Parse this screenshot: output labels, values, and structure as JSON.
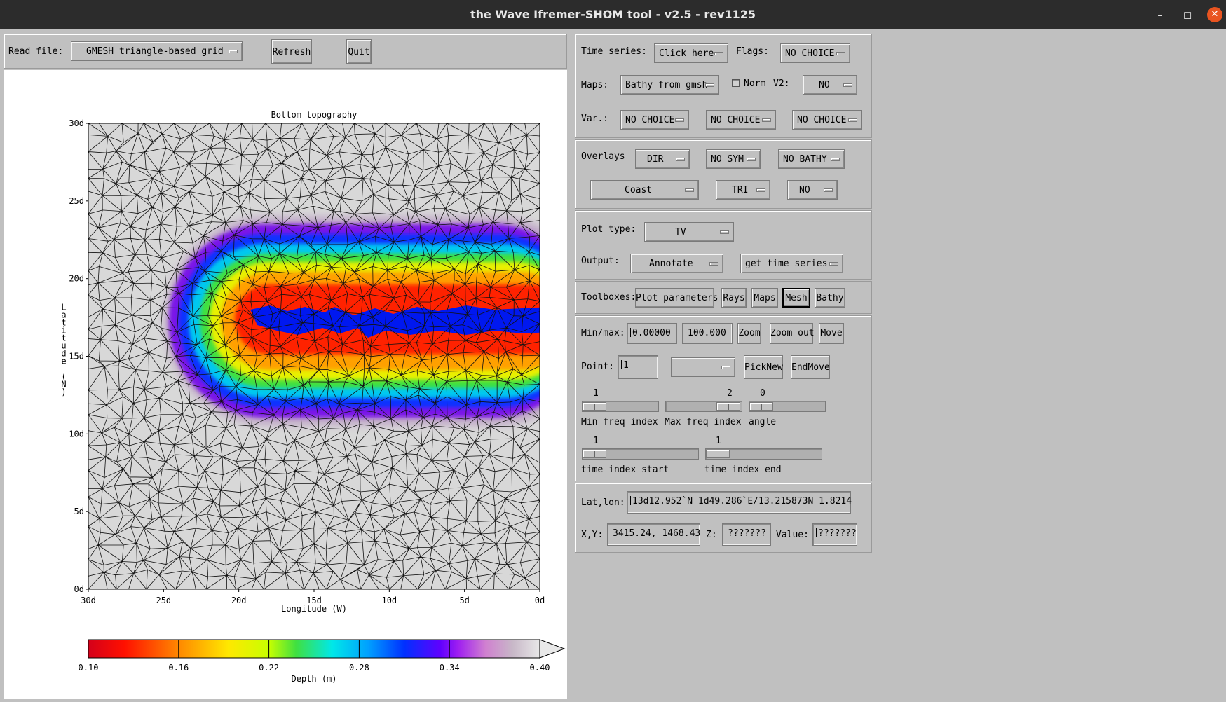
{
  "window": {
    "title": "the Wave Ifremer-SHOM tool - v2.5 - rev1125",
    "minimize": "–",
    "maximize": "◻",
    "close": "✕"
  },
  "left": {
    "read_file_label": "Read file:",
    "read_file_value": "GMESH triangle-based grid",
    "refresh": "Refresh",
    "quit": "Quit"
  },
  "chart_data": {
    "type": "heatmap",
    "title": "Bottom topography",
    "xlabel": "Longitude (W)",
    "ylabel": "Latitude (N)",
    "x_ticks": [
      "30d",
      "25d",
      "20d",
      "15d",
      "10d",
      "5d",
      "0d"
    ],
    "y_ticks": [
      "30d",
      "25d",
      "20d",
      "15d",
      "10d",
      "5d",
      "0d"
    ],
    "xlim": [
      30,
      0
    ],
    "ylim": [
      0,
      30
    ],
    "colorbar": {
      "label": "Depth (m)",
      "ticks": [
        "0.10",
        "0.16",
        "0.22",
        "0.28",
        "0.34",
        "0.40"
      ],
      "range": [
        0.1,
        0.4
      ],
      "colors": [
        "#d4001a",
        "#ff1000",
        "#ff8800",
        "#ffe800",
        "#c8ff00",
        "#40e040",
        "#00e8e8",
        "#00a0ff",
        "#0030ff",
        "#6000ff",
        "#a020f0",
        "#d080d0",
        "#c8b8c8",
        "#e8e8e8"
      ]
    },
    "feature": "eastward-opening U-shaped depth anomaly centred near 15d N, extending from about 21d W to 0d W"
  },
  "right": {
    "time_series_label": "Time series:",
    "time_series_value": "Click here",
    "flags_label": "Flags:",
    "flags_value": "NO CHOICE",
    "maps_label": "Maps:",
    "maps_value": "Bathy from gmsh",
    "norm_label": "Norm",
    "v2_label": "V2:",
    "v2_value": "NO",
    "var_label": "Var.:",
    "var1": "NO CHOICE",
    "var2": "NO CHOICE",
    "var3": "NO CHOICE",
    "overlays_label": "Overlays",
    "ov_dir": "DIR",
    "ov_sym": "NO SYM",
    "ov_bathy": "NO BATHY",
    "ov_coast": "Coast",
    "ov_tri": "TRI",
    "ov_no": "NO",
    "plot_type_label": "Plot type:",
    "plot_type_value": "TV",
    "output_label": "Output:",
    "output_value": "Annotate",
    "output_action": "get time series",
    "toolboxes_label": "Toolboxes:",
    "tb_plot": "Plot parameters",
    "tb_rays": "Rays",
    "tb_maps": "Maps",
    "tb_mesh": "Mesh",
    "tb_bathy": "Bathy",
    "minmax_label": "Min/max:",
    "min_value": "0.00000",
    "max_value": "100.000",
    "zoom": "Zoom",
    "zoom_out": "Zoom out",
    "move": "Move",
    "point_label": "Point:",
    "point_value": "1",
    "picknew": "PickNew",
    "endmove": "EndMove",
    "min_freq_value": "1",
    "max_freq_value": "2",
    "angle_value": "0",
    "min_freq_label": "Min freq index",
    "max_freq_label": "Max freq index",
    "angle_label": "angle",
    "t_start_value": "1",
    "t_end_value": "1",
    "t_start_label": "time index start",
    "t_end_label": "time index end",
    "latlon_label": "Lat,lon:",
    "latlon_value": "13d12.952`N   1d49.286`E/13.215873N   1.8214",
    "xy_label": "X,Y:",
    "xy_value": "3415.24, 1468.43",
    "z_label": "Z:",
    "z_value": "???????",
    "value_label": "Value:",
    "value_value": "???????"
  }
}
